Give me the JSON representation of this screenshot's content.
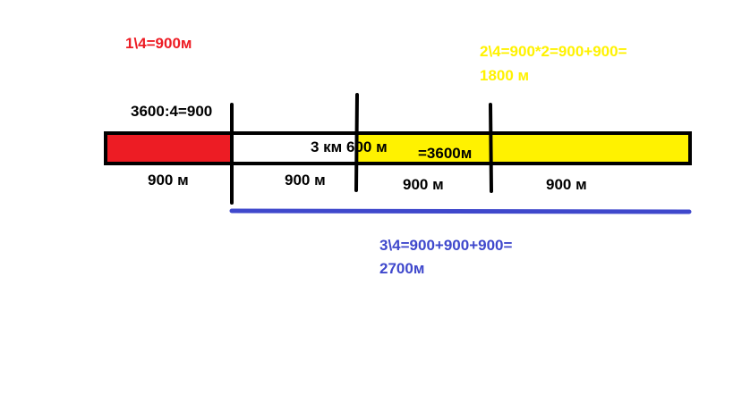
{
  "colors": {
    "red": "#ed1c24",
    "yellow": "#fff200",
    "blue": "#3f48cc",
    "black": "#000000"
  },
  "labels": {
    "one_quarter": "1\\4=900м",
    "two_quarters_line1": "2\\4=900*2=900+900=",
    "two_quarters_line2": "1800 м",
    "division": "3600:4=900",
    "total_km": "3 км 600 м",
    "total_m": "=3600м",
    "three_quarters_line1": "3\\4=900+900+900=",
    "three_quarters_line2": "2700м"
  },
  "segments": [
    {
      "label": "900  м"
    },
    {
      "label": "900  м"
    },
    {
      "label": "900   м"
    },
    {
      "label": "900     м"
    }
  ]
}
